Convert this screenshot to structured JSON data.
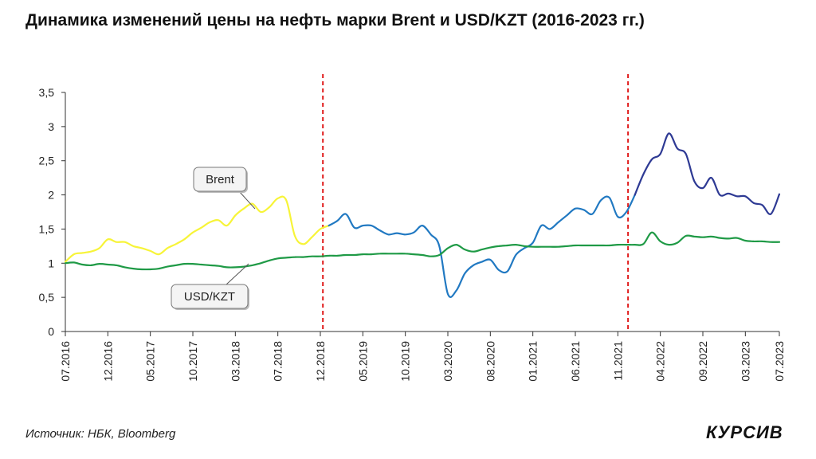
{
  "title": "Динамика изменений цены на нефть марки Brent и USD/KZT (2016-2023 гг.)",
  "source": "Источник: НБК, Bloomberg",
  "logo": "КУРСИВ",
  "colors": {
    "brent_period1": "#f7f438",
    "brent_period2": "#2179c2",
    "brent_period3": "#2e3a94",
    "usdkzt": "#1f9a46",
    "divider": "#e01b1b",
    "axis": "#333333"
  },
  "chart_data": {
    "type": "line",
    "ylim": [
      0,
      3.5
    ],
    "y_ticks": [
      "0",
      "0,5",
      "1",
      "1,5",
      "2",
      "2,5",
      "3",
      "3,5"
    ],
    "y_tick_values": [
      0,
      0.5,
      1,
      1.5,
      2,
      2.5,
      3,
      3.5
    ],
    "xlim": [
      0,
      84
    ],
    "x_ticks": [
      "07.2016",
      "12.2016",
      "05.2017",
      "10.2017",
      "03.2018",
      "07.2018",
      "12.2018",
      "05.2019",
      "10.2019",
      "03.2020",
      "08.2020",
      "01.2021",
      "06.2021",
      "11.2021",
      "04.2022",
      "09.2022",
      "03.2023",
      "07.2023"
    ],
    "x_tick_positions": [
      0,
      5,
      10,
      15,
      20,
      25,
      30,
      35,
      40,
      45,
      50,
      55,
      60,
      65,
      70,
      75,
      80,
      84
    ],
    "dividers_x": [
      30.3,
      66.2
    ],
    "callouts": [
      {
        "label": "Brent",
        "series": "brent"
      },
      {
        "label": "USD/KZT",
        "series": "usdkzt"
      }
    ],
    "series": [
      {
        "name": "Brent",
        "key": "brent",
        "segments": [
          {
            "color_key": "brent_period1",
            "x": [
              0,
              1,
              2,
              3,
              4,
              5,
              6,
              7,
              8,
              9,
              10,
              11,
              12,
              13,
              14,
              15,
              16,
              17,
              18,
              19,
              20,
              21,
              22,
              23,
              24,
              25,
              26,
              27,
              28,
              29,
              30,
              31
            ],
            "y": [
              1.02,
              1.13,
              1.15,
              1.17,
              1.22,
              1.35,
              1.31,
              1.31,
              1.25,
              1.22,
              1.18,
              1.13,
              1.22,
              1.28,
              1.35,
              1.45,
              1.52,
              1.6,
              1.63,
              1.55,
              1.7,
              1.8,
              1.87,
              1.75,
              1.82,
              1.95,
              1.92,
              1.4,
              1.28,
              1.38,
              1.5,
              1.55
            ]
          },
          {
            "color_key": "brent_period2",
            "x": [
              31,
              32,
              33,
              34,
              35,
              36,
              37,
              38,
              39,
              40,
              41,
              42,
              43,
              44,
              45,
              46,
              47,
              48,
              49,
              50,
              51,
              52,
              53,
              54,
              55,
              56,
              57,
              58,
              59,
              60,
              61,
              62,
              63,
              64,
              65,
              66,
              67
            ],
            "y": [
              1.55,
              1.62,
              1.72,
              1.52,
              1.55,
              1.55,
              1.48,
              1.42,
              1.44,
              1.42,
              1.45,
              1.55,
              1.42,
              1.25,
              0.55,
              0.6,
              0.85,
              0.97,
              1.02,
              1.05,
              0.9,
              0.88,
              1.12,
              1.22,
              1.3,
              1.55,
              1.5,
              1.6,
              1.7,
              1.8,
              1.78,
              1.72,
              1.92,
              1.96,
              1.68,
              1.75,
              2.0
            ]
          },
          {
            "color_key": "brent_period3",
            "x": [
              67,
              68,
              69,
              70,
              71,
              72,
              73,
              74,
              75,
              76,
              77,
              78,
              79,
              80,
              81,
              82,
              83,
              84
            ],
            "y": [
              2.0,
              2.3,
              2.52,
              2.6,
              2.9,
              2.68,
              2.6,
              2.2,
              2.1,
              2.25,
              2.0,
              2.02,
              1.98,
              1.98,
              1.88,
              1.85,
              1.72,
              2.01
            ]
          }
        ]
      },
      {
        "name": "USD/KZT",
        "key": "usdkzt",
        "color_key": "usdkzt",
        "x": [
          0,
          1,
          2,
          3,
          4,
          5,
          6,
          7,
          8,
          9,
          10,
          11,
          12,
          13,
          14,
          15,
          16,
          17,
          18,
          19,
          20,
          21,
          22,
          23,
          24,
          25,
          26,
          27,
          28,
          29,
          30,
          31,
          32,
          33,
          34,
          35,
          36,
          37,
          38,
          39,
          40,
          41,
          42,
          43,
          44,
          45,
          46,
          47,
          48,
          49,
          50,
          51,
          52,
          53,
          54,
          55,
          56,
          57,
          58,
          59,
          60,
          61,
          62,
          63,
          64,
          65,
          66,
          67,
          68,
          69,
          70,
          71,
          72,
          73,
          74,
          75,
          76,
          77,
          78,
          79,
          80,
          81,
          82,
          83,
          84
        ],
        "y": [
          1.0,
          1.01,
          0.98,
          0.97,
          0.99,
          0.98,
          0.97,
          0.94,
          0.92,
          0.91,
          0.91,
          0.92,
          0.95,
          0.97,
          0.99,
          0.99,
          0.98,
          0.97,
          0.96,
          0.94,
          0.94,
          0.95,
          0.97,
          1.0,
          1.04,
          1.07,
          1.08,
          1.09,
          1.09,
          1.1,
          1.1,
          1.11,
          1.11,
          1.12,
          1.12,
          1.13,
          1.13,
          1.14,
          1.14,
          1.14,
          1.14,
          1.13,
          1.12,
          1.1,
          1.12,
          1.22,
          1.27,
          1.2,
          1.17,
          1.2,
          1.23,
          1.25,
          1.26,
          1.27,
          1.25,
          1.24,
          1.24,
          1.24,
          1.24,
          1.25,
          1.26,
          1.26,
          1.26,
          1.26,
          1.26,
          1.27,
          1.27,
          1.27,
          1.28,
          1.45,
          1.32,
          1.27,
          1.3,
          1.4,
          1.39,
          1.38,
          1.39,
          1.37,
          1.36,
          1.37,
          1.33,
          1.32,
          1.32,
          1.31,
          1.31
        ]
      }
    ]
  }
}
